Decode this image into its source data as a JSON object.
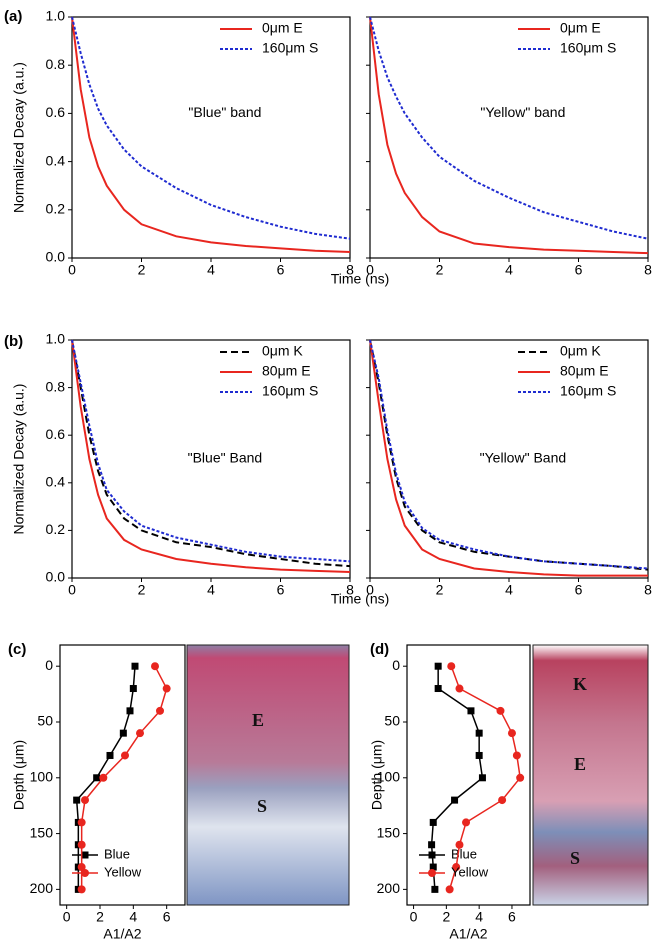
{
  "chart_data": [
    {
      "type": "line",
      "panel": "(a)",
      "y_label": "Normalized Decay (a.u.)",
      "x_label": "Time (ns)",
      "annotation": "\"Blue\" band",
      "x": [
        0,
        0.25,
        0.5,
        0.75,
        1,
        1.5,
        2,
        3,
        4,
        5,
        6,
        7,
        8
      ],
      "xlim": [
        0,
        8
      ],
      "xticks": [
        0,
        2,
        4,
        6,
        8
      ],
      "ylim": [
        0,
        1
      ],
      "yticks": [
        {
          "value": 0,
          "label": "0.0"
        },
        0.2,
        0.4,
        0.6,
        0.8,
        {
          "value": 1,
          "label": "1.0"
        }
      ],
      "legend": "upper right",
      "series": [
        {
          "name": "0μm E",
          "color": "#e8261f",
          "dash": "solid",
          "values": [
            1,
            0.7,
            0.5,
            0.38,
            0.3,
            0.2,
            0.14,
            0.09,
            0.065,
            0.05,
            0.04,
            0.03,
            0.025
          ]
        },
        {
          "name": "160μm S",
          "color": "#1f2bd0",
          "dash": "dotted",
          "values": [
            1,
            0.85,
            0.72,
            0.62,
            0.55,
            0.45,
            0.38,
            0.29,
            0.22,
            0.17,
            0.13,
            0.1,
            0.08
          ]
        }
      ]
    },
    {
      "type": "line",
      "annotation": "\"Yellow\" band",
      "x": [
        0,
        0.25,
        0.5,
        0.75,
        1,
        1.5,
        2,
        3,
        4,
        5,
        6,
        7,
        8
      ],
      "xlim": [
        0,
        8
      ],
      "xticks": [
        0,
        2,
        4,
        6,
        8
      ],
      "ylim": [
        0,
        1
      ],
      "yticks": [
        0,
        0.2,
        0.4,
        0.6,
        0.8,
        1
      ],
      "legend": "upper right",
      "series": [
        {
          "name": "0μm E",
          "color": "#e8261f",
          "dash": "solid",
          "values": [
            1,
            0.68,
            0.47,
            0.35,
            0.27,
            0.17,
            0.11,
            0.06,
            0.045,
            0.035,
            0.03,
            0.025,
            0.02
          ]
        },
        {
          "name": "160μm S",
          "color": "#1f2bd0",
          "dash": "dotted",
          "values": [
            1,
            0.86,
            0.75,
            0.67,
            0.6,
            0.5,
            0.42,
            0.32,
            0.25,
            0.19,
            0.15,
            0.11,
            0.08
          ]
        }
      ]
    },
    {
      "type": "line",
      "panel": "(b)",
      "y_label": "Normalized Decay (a.u.)",
      "x_label": "Time (ns)",
      "annotation": "\"Blue\" Band",
      "x": [
        0,
        0.25,
        0.5,
        0.75,
        1,
        1.5,
        2,
        3,
        4,
        5,
        6,
        7,
        8
      ],
      "xlim": [
        0,
        8
      ],
      "xticks": [
        0,
        2,
        4,
        6,
        8
      ],
      "ylim": [
        0,
        1
      ],
      "yticks": [
        {
          "value": 0,
          "label": "0.0"
        },
        0.2,
        0.4,
        0.6,
        0.8,
        {
          "value": 1,
          "label": "1.0"
        }
      ],
      "legend": "upper right",
      "series": [
        {
          "name": "0μm K",
          "color": "#000000",
          "dash": "dashed",
          "values": [
            1,
            0.8,
            0.6,
            0.45,
            0.35,
            0.25,
            0.2,
            0.15,
            0.13,
            0.1,
            0.08,
            0.06,
            0.05
          ]
        },
        {
          "name": "80μm E",
          "color": "#e8261f",
          "dash": "solid",
          "values": [
            1,
            0.72,
            0.5,
            0.35,
            0.25,
            0.16,
            0.12,
            0.08,
            0.06,
            0.045,
            0.035,
            0.03,
            0.025
          ]
        },
        {
          "name": "160μm S",
          "color": "#1f2bd0",
          "dash": "dotted",
          "values": [
            1,
            0.82,
            0.64,
            0.48,
            0.37,
            0.28,
            0.22,
            0.17,
            0.14,
            0.11,
            0.09,
            0.08,
            0.07
          ]
        }
      ]
    },
    {
      "type": "line",
      "annotation": "\"Yellow\" Band",
      "x": [
        0,
        0.25,
        0.5,
        0.75,
        1,
        1.5,
        2,
        3,
        4,
        5,
        6,
        7,
        8
      ],
      "xlim": [
        0,
        8
      ],
      "xticks": [
        0,
        2,
        4,
        6,
        8
      ],
      "ylim": [
        0,
        1
      ],
      "yticks": [
        0,
        0.2,
        0.4,
        0.6,
        0.8,
        1
      ],
      "legend": "upper right",
      "series": [
        {
          "name": "0μm K",
          "color": "#000000",
          "dash": "dashed",
          "values": [
            1,
            0.82,
            0.6,
            0.42,
            0.3,
            0.2,
            0.15,
            0.11,
            0.09,
            0.07,
            0.06,
            0.05,
            0.035
          ]
        },
        {
          "name": "80μm E",
          "color": "#e8261f",
          "dash": "solid",
          "values": [
            1,
            0.74,
            0.5,
            0.33,
            0.22,
            0.12,
            0.08,
            0.04,
            0.025,
            0.015,
            0.01,
            0.01,
            0.01
          ]
        },
        {
          "name": "160μm S",
          "color": "#1f2bd0",
          "dash": "dotted",
          "values": [
            1,
            0.84,
            0.62,
            0.44,
            0.32,
            0.21,
            0.16,
            0.12,
            0.09,
            0.07,
            0.06,
            0.05,
            0.04
          ]
        }
      ]
    },
    {
      "type": "profile",
      "panel": "(c)",
      "y_label": "Depth (μm)",
      "x_label": "A1/A2",
      "image_labels": [
        "E",
        "S"
      ],
      "y": [
        0,
        20,
        40,
        60,
        80,
        100,
        120,
        140,
        160,
        180,
        200
      ],
      "ylim": [
        -19,
        214
      ],
      "yticks": [
        0,
        50,
        100,
        150,
        200
      ],
      "y_inverted": true,
      "xlim": [
        -0.4,
        7.1
      ],
      "xticks": [
        0,
        2,
        4,
        6
      ],
      "legend": "lower left",
      "series": [
        {
          "name": "Blue",
          "color": "#000000",
          "marker": "square",
          "values": [
            4.1,
            4.0,
            3.8,
            3.4,
            2.6,
            1.8,
            0.6,
            0.7,
            0.7,
            0.7,
            0.7
          ]
        },
        {
          "name": "Yellow",
          "color": "#e8261f",
          "marker": "circle",
          "values": [
            5.3,
            6.0,
            5.6,
            4.4,
            3.5,
            2.2,
            1.1,
            0.9,
            0.9,
            0.9,
            0.9
          ]
        }
      ]
    },
    {
      "type": "profile",
      "panel": "(d)",
      "y_label": "Depth (μm)",
      "x_label": "A1/A2",
      "image_labels": [
        "K",
        "E",
        "S"
      ],
      "y": [
        0,
        20,
        40,
        60,
        80,
        100,
        120,
        140,
        160,
        180,
        200
      ],
      "ylim": [
        -19,
        214
      ],
      "yticks": [
        0,
        50,
        100,
        150,
        200
      ],
      "y_inverted": true,
      "xlim": [
        -0.4,
        7.1
      ],
      "xticks": [
        0,
        2,
        4,
        6
      ],
      "legend": "lower left",
      "series": [
        {
          "name": "Blue",
          "color": "#000000",
          "marker": "square",
          "values": [
            1.5,
            1.5,
            3.5,
            4.0,
            4.0,
            4.2,
            2.5,
            1.2,
            1.1,
            1.2,
            1.3
          ]
        },
        {
          "name": "Yellow",
          "color": "#e8261f",
          "marker": "circle",
          "values": [
            2.3,
            2.8,
            5.3,
            6.0,
            6.3,
            6.5,
            5.4,
            3.2,
            2.8,
            2.6,
            2.2
          ]
        }
      ]
    }
  ]
}
